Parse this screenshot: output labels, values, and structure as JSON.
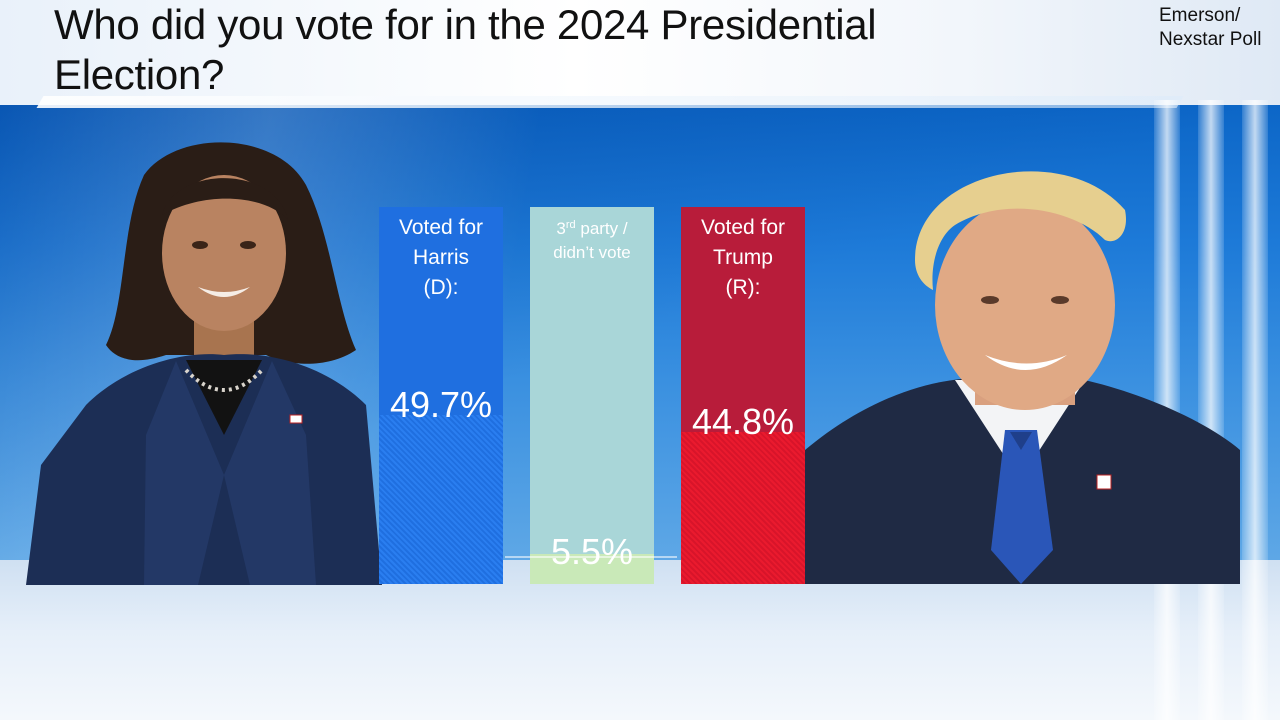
{
  "title": "Who did you vote for in the 2024 Presidential Election?",
  "source": "Emerson/ Nexstar Poll",
  "colors": {
    "harris": "#1f6fe0",
    "third_party": "#a9d6d8",
    "trump": "#d8142a"
  },
  "chart_data": {
    "type": "bar",
    "title": "Who did you vote for in the 2024 Presidential Election?",
    "categories": [
      "Voted for Harris (D):",
      "3rd party / didn’t vote",
      "Voted for Trump (R):"
    ],
    "values": [
      49.7,
      5.5,
      44.8
    ],
    "value_labels": [
      "49.7%",
      "5.5%",
      "44.8%"
    ],
    "xlabel": "",
    "ylabel": "",
    "ylim": [
      0,
      100
    ],
    "grid": false,
    "legend": "none"
  },
  "bars": {
    "harris": {
      "line1": "Voted for",
      "line2": "Harris",
      "line3": "(D):",
      "value": "49.7%"
    },
    "third": {
      "prefix": "3",
      "sup": "rd",
      "line1_rest": " party /",
      "line2": "didn’t vote",
      "value": "5.5%"
    },
    "trump": {
      "line1": "Voted for",
      "line2": "Trump",
      "line3": "(R):",
      "value": "44.8%"
    }
  },
  "images": {
    "left": "candidate-portrait-harris",
    "right": "candidate-portrait-trump"
  }
}
